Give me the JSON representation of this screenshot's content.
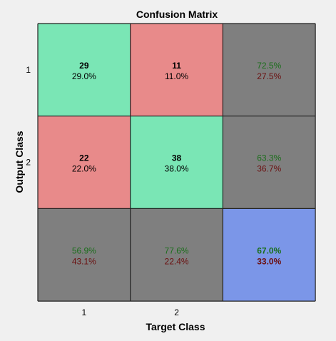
{
  "chart_data": {
    "type": "heatmap",
    "title": "Confusion Matrix",
    "xlabel": "Target Class",
    "ylabel": "Output Class",
    "x_tick_labels": [
      "1",
      "2"
    ],
    "y_tick_labels": [
      "1",
      "2"
    ],
    "cells": [
      [
        {
          "count": "29",
          "percent": "29.0%",
          "kind": "correct"
        },
        {
          "count": "11",
          "percent": "11.0%",
          "kind": "incorrect"
        },
        {
          "top": "72.5%",
          "bottom": "27.5%",
          "kind": "summary"
        }
      ],
      [
        {
          "count": "22",
          "percent": "22.0%",
          "kind": "incorrect"
        },
        {
          "count": "38",
          "percent": "38.0%",
          "kind": "correct"
        },
        {
          "top": "63.3%",
          "bottom": "36.7%",
          "kind": "summary"
        }
      ],
      [
        {
          "top": "56.9%",
          "bottom": "43.1%",
          "kind": "summary"
        },
        {
          "top": "77.6%",
          "bottom": "22.4%",
          "kind": "summary"
        },
        {
          "top": "67.0%",
          "bottom": "33.0%",
          "kind": "overall"
        }
      ]
    ],
    "colors": {
      "background": "#f0f0f0",
      "correct": "#7ae6b5",
      "incorrect": "#e88a8a",
      "summary": "#7f7f7f",
      "overall": "#7b96e8",
      "good_text": "#1b6e1b",
      "bad_text": "#6b1010",
      "grid": "#222222",
      "text": "#000000"
    }
  }
}
